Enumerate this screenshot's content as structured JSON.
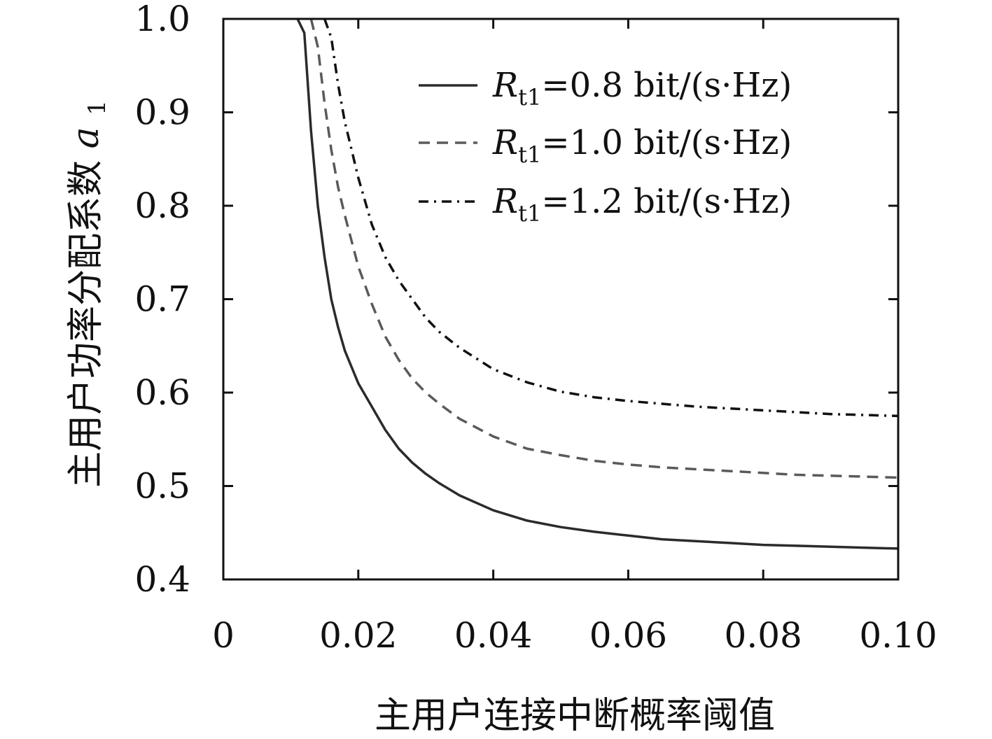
{
  "chart_data": {
    "type": "line",
    "title": "",
    "xlabel": "主用户连接中断概率阈值",
    "ylabel": {
      "text": "主用户功率分配系数",
      "symbol": "a",
      "subscript": "1"
    },
    "xlim": [
      0,
      0.1
    ],
    "ylim": [
      0.4,
      1.0
    ],
    "xticks": [
      0,
      0.02,
      0.04,
      0.06,
      0.08,
      0.1
    ],
    "xtick_labels": [
      "0",
      "0.02",
      "0.04",
      "0.06",
      "0.08",
      "0.10"
    ],
    "yticks": [
      0.4,
      0.5,
      0.6,
      0.7,
      0.8,
      0.9,
      1.0
    ],
    "ytick_labels": [
      "0.4",
      "0.5",
      "0.6",
      "0.7",
      "0.8",
      "0.9",
      "1.0"
    ],
    "grid": false,
    "legend_position": "top-right",
    "series": [
      {
        "name": "Rt1=0.8 bit/(s·Hz)",
        "label_symbol": "R",
        "label_sub": "t1",
        "label_value": "=0.8 bit/(s·Hz)",
        "style": "solid",
        "color": "#2b2b2b",
        "x": [
          0.011,
          0.012,
          0.013,
          0.014,
          0.015,
          0.016,
          0.017,
          0.018,
          0.02,
          0.022,
          0.024,
          0.026,
          0.028,
          0.03,
          0.032,
          0.035,
          0.04,
          0.045,
          0.05,
          0.055,
          0.06,
          0.065,
          0.07,
          0.075,
          0.08,
          0.085,
          0.09,
          0.095,
          0.1
        ],
        "y": [
          1.0,
          0.985,
          0.88,
          0.8,
          0.745,
          0.7,
          0.67,
          0.645,
          0.61,
          0.585,
          0.56,
          0.54,
          0.525,
          0.513,
          0.503,
          0.49,
          0.474,
          0.463,
          0.456,
          0.451,
          0.447,
          0.443,
          0.441,
          0.439,
          0.437,
          0.436,
          0.435,
          0.434,
          0.433
        ]
      },
      {
        "name": "Rt1=1.0 bit/(s·Hz)",
        "label_symbol": "R",
        "label_sub": "t1",
        "label_value": "=1.0 bit/(s·Hz)",
        "style": "dashed",
        "color": "#5a5a5a",
        "x": [
          0.013,
          0.014,
          0.015,
          0.016,
          0.017,
          0.018,
          0.02,
          0.022,
          0.024,
          0.026,
          0.028,
          0.03,
          0.032,
          0.035,
          0.04,
          0.045,
          0.05,
          0.055,
          0.06,
          0.065,
          0.07,
          0.075,
          0.08,
          0.085,
          0.09,
          0.095,
          0.1
        ],
        "y": [
          1.0,
          0.97,
          0.91,
          0.86,
          0.82,
          0.79,
          0.735,
          0.695,
          0.66,
          0.635,
          0.615,
          0.6,
          0.588,
          0.572,
          0.553,
          0.54,
          0.533,
          0.527,
          0.523,
          0.52,
          0.518,
          0.516,
          0.514,
          0.512,
          0.511,
          0.51,
          0.509
        ]
      },
      {
        "name": "Rt1=1.2 bit/(s·Hz)",
        "label_symbol": "R",
        "label_sub": "t1",
        "label_value": "=1.2 bit/(s·Hz)",
        "style": "dashdot",
        "color": "#111111",
        "x": [
          0.015,
          0.016,
          0.017,
          0.018,
          0.019,
          0.02,
          0.022,
          0.024,
          0.026,
          0.028,
          0.03,
          0.032,
          0.035,
          0.04,
          0.045,
          0.05,
          0.055,
          0.06,
          0.065,
          0.07,
          0.075,
          0.08,
          0.085,
          0.09,
          0.095,
          0.1
        ],
        "y": [
          1.0,
          0.98,
          0.93,
          0.89,
          0.86,
          0.83,
          0.78,
          0.745,
          0.72,
          0.7,
          0.68,
          0.665,
          0.648,
          0.625,
          0.611,
          0.601,
          0.595,
          0.591,
          0.588,
          0.585,
          0.583,
          0.581,
          0.579,
          0.577,
          0.576,
          0.575
        ]
      }
    ]
  }
}
